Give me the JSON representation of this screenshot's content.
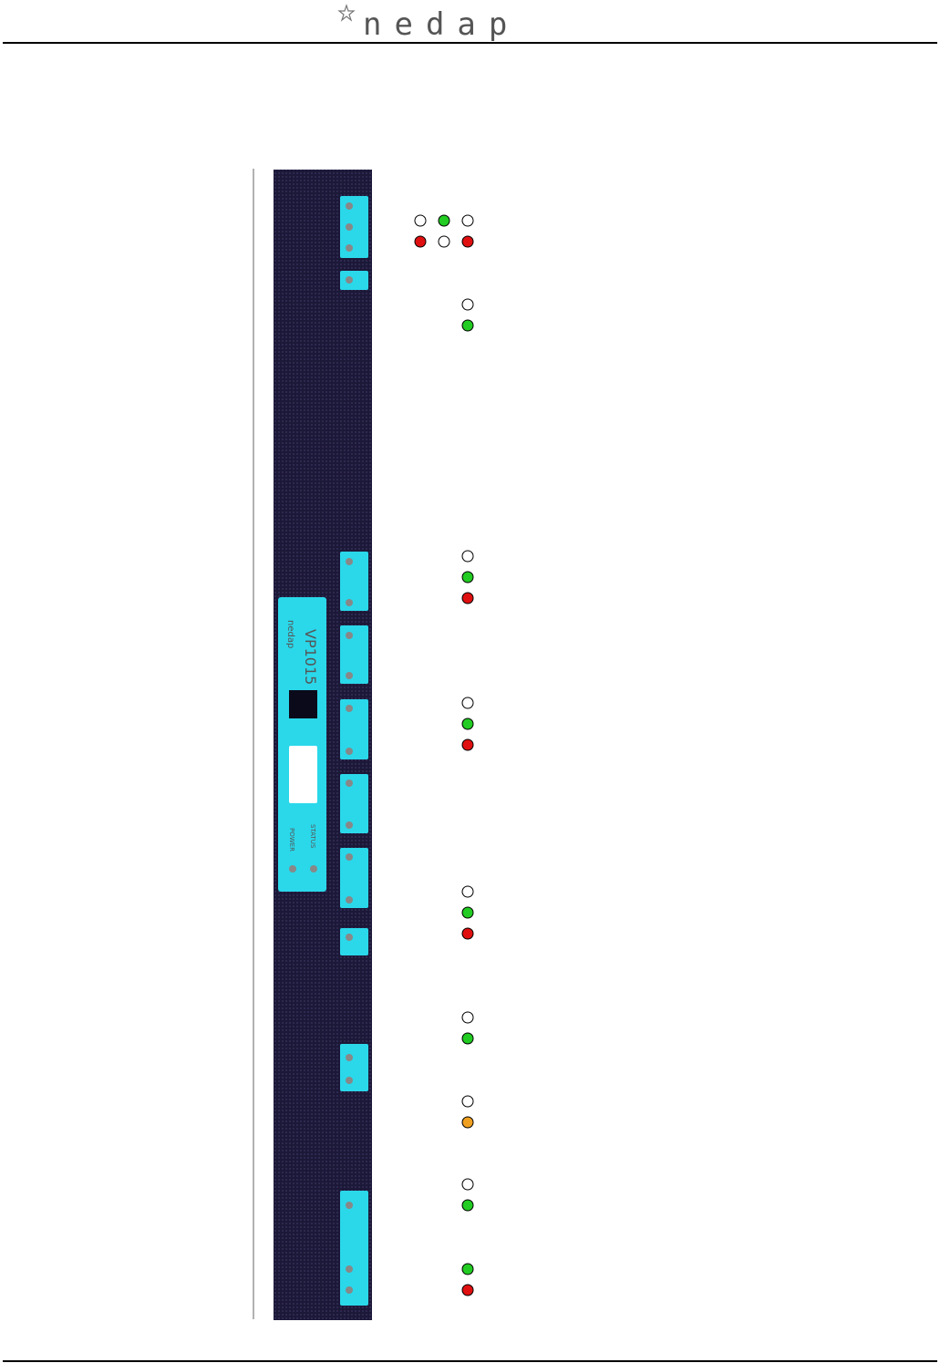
{
  "header": {
    "logo": "nedap"
  },
  "device": {
    "model": "VP1015",
    "brand": "nedap",
    "leds": [
      "POWER",
      "STATUS"
    ]
  }
}
